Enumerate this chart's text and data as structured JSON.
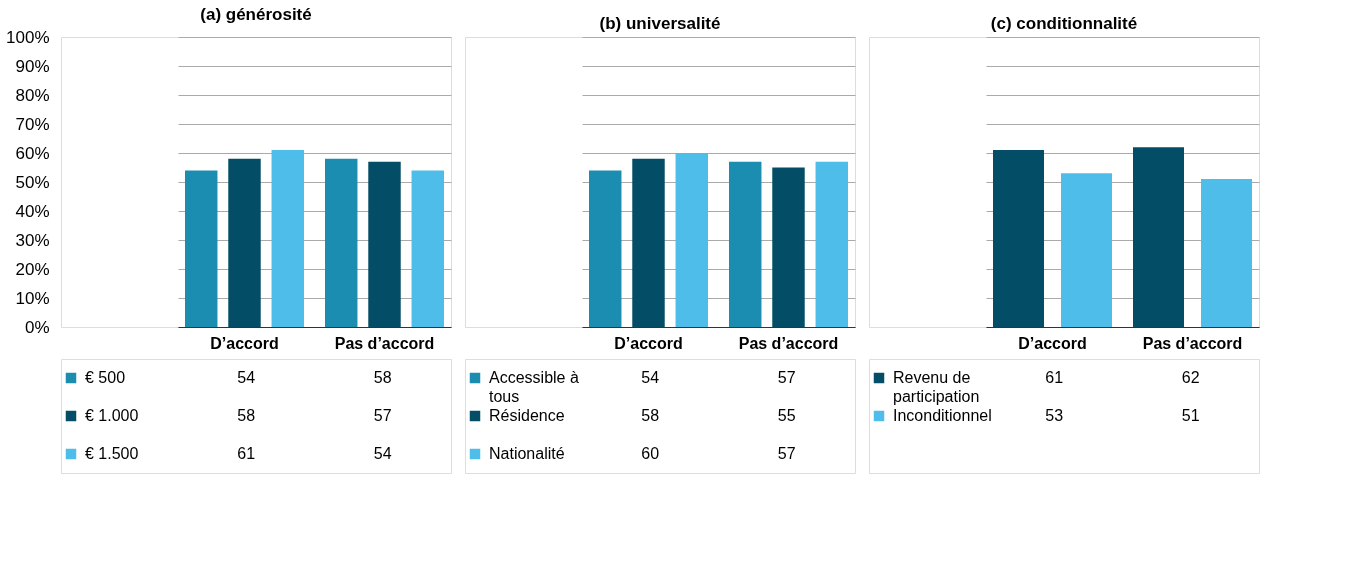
{
  "chart_data": [
    {
      "type": "bar",
      "title": "(a) générosité",
      "categories": [
        "D’accord",
        "Pas d’accord"
      ],
      "series": [
        {
          "name": "€ 500",
          "color": "#1a8db0",
          "values": [
            54,
            58
          ]
        },
        {
          "name": "€ 1.000",
          "color": "#034e66",
          "values": [
            58,
            57
          ]
        },
        {
          "name": "€ 1.500",
          "color": "#4fbde9",
          "values": [
            61,
            54
          ]
        }
      ],
      "ylim": [
        0,
        100
      ],
      "yticks": [
        {
          "value": 0,
          "label": "0%"
        },
        {
          "value": 10,
          "label": "10%"
        },
        {
          "value": 20,
          "label": "20%"
        },
        {
          "value": 30,
          "label": "30%"
        },
        {
          "value": 40,
          "label": "40%"
        },
        {
          "value": 50,
          "label": "50%"
        },
        {
          "value": 60,
          "label": "60%"
        },
        {
          "value": 70,
          "label": "70%"
        },
        {
          "value": 80,
          "label": "80%"
        },
        {
          "value": 90,
          "label": "90%"
        },
        {
          "value": 100,
          "label": "100%"
        }
      ],
      "grid": "y",
      "legend": "bottom",
      "data_labels": true
    },
    {
      "type": "bar",
      "title": "(b) universalité",
      "categories": [
        "D’accord",
        "Pas d’accord"
      ],
      "series": [
        {
          "name": "Accessible à tous",
          "color": "#1a8db0",
          "values": [
            54,
            57
          ]
        },
        {
          "name": "Résidence",
          "color": "#034e66",
          "values": [
            58,
            55
          ]
        },
        {
          "name": "Nationalité",
          "color": "#4fbde9",
          "values": [
            60,
            57
          ]
        }
      ],
      "ylim": [
        0,
        100
      ],
      "yticks": [
        {
          "value": 0,
          "label": null
        },
        {
          "value": 10,
          "label": null
        },
        {
          "value": 20,
          "label": null
        },
        {
          "value": 30,
          "label": null
        },
        {
          "value": 40,
          "label": null
        },
        {
          "value": 50,
          "label": null
        },
        {
          "value": 60,
          "label": null
        },
        {
          "value": 70,
          "label": null
        },
        {
          "value": 80,
          "label": null
        },
        {
          "value": 90,
          "label": null
        },
        {
          "value": 100,
          "label": null
        }
      ],
      "grid": "y",
      "legend": "bottom",
      "data_labels": true,
      "tick_labels": "x"
    },
    {
      "type": "bar",
      "title": "(c) conditionnalité",
      "categories": [
        "D’accord",
        "Pas d’accord"
      ],
      "series": [
        {
          "name": "Revenu de participation",
          "color": "#034e66",
          "values": [
            61,
            62
          ]
        },
        {
          "name": "Inconditionnel",
          "color": "#4fbde9",
          "values": [
            53,
            51
          ]
        }
      ],
      "ylim": [
        0,
        100
      ],
      "yticks": [
        {
          "value": 0,
          "label": null
        },
        {
          "value": 10,
          "label": null
        },
        {
          "value": 20,
          "label": null
        },
        {
          "value": 30,
          "label": null
        },
        {
          "value": 40,
          "label": null
        },
        {
          "value": 50,
          "label": null
        },
        {
          "value": 60,
          "label": null
        },
        {
          "value": 70,
          "label": null
        },
        {
          "value": 80,
          "label": null
        },
        {
          "value": 90,
          "label": null
        },
        {
          "value": 100,
          "label": null
        }
      ],
      "grid": "y",
      "legend": "bottom",
      "data_labels": true,
      "tick_labels": "x"
    }
  ]
}
